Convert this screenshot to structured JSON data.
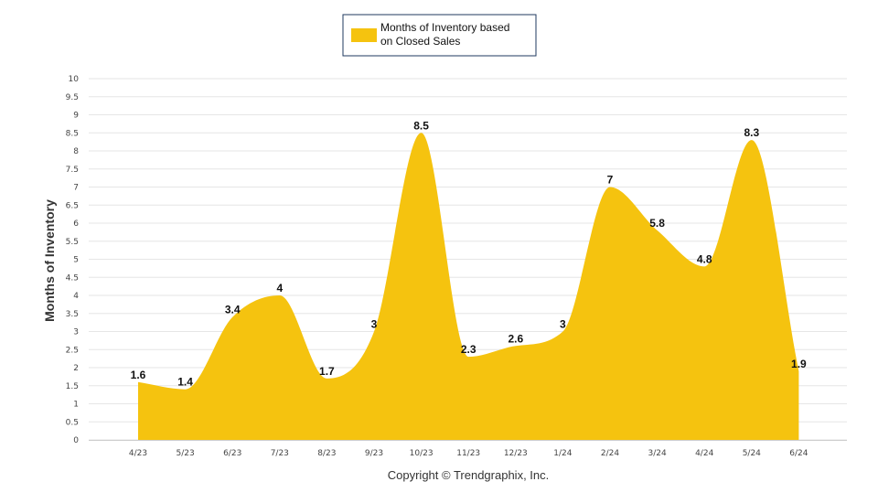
{
  "chart_data": {
    "type": "area",
    "title": "",
    "xlabel": "",
    "ylabel": "Months of Inventory",
    "ylim": [
      0,
      10
    ],
    "yticks": [
      "0",
      "0.5",
      "1",
      "1.5",
      "2",
      "2.5",
      "3",
      "3.5",
      "4",
      "4.5",
      "5",
      "5.5",
      "6",
      "6.5",
      "7",
      "7.5",
      "8",
      "8.5",
      "9",
      "9.5",
      "10"
    ],
    "categories": [
      "4/23",
      "5/23",
      "6/23",
      "7/23",
      "8/23",
      "9/23",
      "10/23",
      "11/23",
      "12/23",
      "1/24",
      "2/24",
      "3/24",
      "4/24",
      "5/24",
      "6/24"
    ],
    "series": [
      {
        "name": "Months of Inventory based on Closed Sales",
        "values": [
          1.6,
          1.4,
          3.4,
          4,
          1.7,
          3,
          8.5,
          2.3,
          2.6,
          3,
          7,
          5.8,
          4.8,
          8.3,
          1.9
        ],
        "labels": [
          "1.6",
          "1.4",
          "3.4",
          "4",
          "1.7",
          "3",
          "8.5",
          "2.3",
          "2.6",
          "3",
          "7",
          "5.8",
          "4.8",
          "8.3",
          "1.9"
        ]
      }
    ],
    "legend": {
      "position": "top",
      "line1": "Months of Inventory based",
      "line2": "on Closed Sales"
    },
    "grid": true
  },
  "colors": {
    "fill": "#F5C30F",
    "grid": "#e6e6e6",
    "legend_border": "#1f3a5f"
  },
  "footer": "Copyright © Trendgraphix, Inc."
}
